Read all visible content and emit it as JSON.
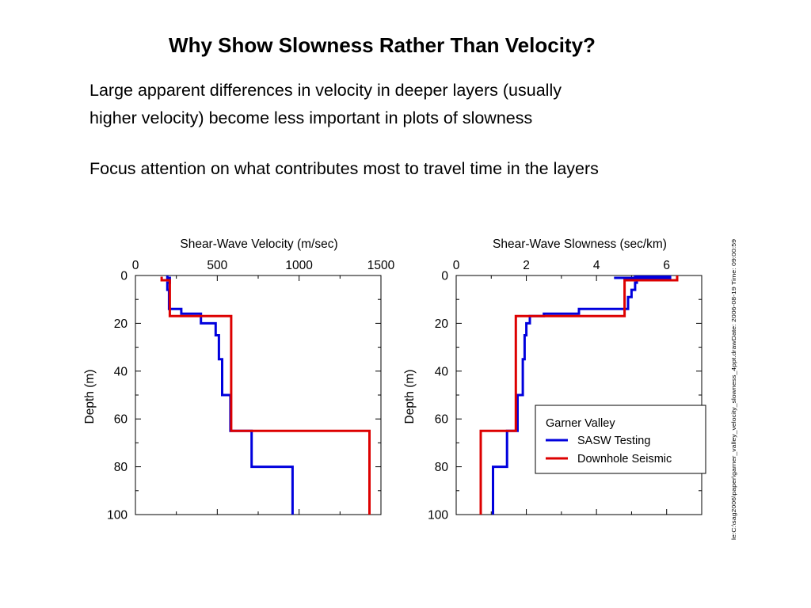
{
  "slide": {
    "title": "Why Show Slowness Rather Than Velocity?",
    "bullets": [
      [
        "Large apparent differences in velocity in deeper layers (usually",
        "higher velocity) become less important in plots of slowness"
      ],
      [
        "Focus attention on what contributes most to travel time in the layers"
      ]
    ],
    "side_note": "le:C:\\sag2006\\paper\\garner_valley_velocity_slowness_4ppt.drawDate: 2006-08-19 Time: 09:00:59"
  },
  "colors": {
    "sasw": "#0000dd",
    "downhole": "#dd0000",
    "axis": "#000000"
  },
  "chart_data": [
    {
      "type": "line",
      "title": "Shear-Wave   Velocity   (m/sec)",
      "xlabel": "Shear-Wave   Velocity   (m/sec)",
      "ylabel": "Depth (m)",
      "xlim": [
        0,
        1500
      ],
      "ylim": [
        0,
        100
      ],
      "y_inverted": true,
      "x_axis_position": "top",
      "xticks": [
        0,
        500,
        1000,
        1500
      ],
      "xtick_labels": [
        "0",
        "500",
        "1000",
        "1500"
      ],
      "yticks": [
        0,
        20,
        40,
        60,
        80,
        100
      ],
      "ytick_labels": [
        "0",
        "20",
        "40",
        "60",
        "80",
        "100"
      ],
      "grid": false,
      "series": [
        {
          "name": "SASW  Testing",
          "color": "#0000dd",
          "points": [
            [
              195,
              0
            ],
            [
              195,
              1
            ],
            [
              210,
              1
            ],
            [
              210,
              3
            ],
            [
              195,
              3
            ],
            [
              195,
              6
            ],
            [
              205,
              6
            ],
            [
              205,
              14
            ],
            [
              280,
              14
            ],
            [
              280,
              16
            ],
            [
              400,
              16
            ],
            [
              400,
              20
            ],
            [
              490,
              20
            ],
            [
              490,
              25
            ],
            [
              510,
              25
            ],
            [
              510,
              35
            ],
            [
              530,
              35
            ],
            [
              530,
              50
            ],
            [
              580,
              50
            ],
            [
              580,
              65
            ],
            [
              710,
              65
            ],
            [
              710,
              80
            ],
            [
              960,
              80
            ],
            [
              960,
              100
            ]
          ]
        },
        {
          "name": "Downhole   Seismic",
          "color": "#dd0000",
          "points": [
            [
              160,
              2
            ],
            [
              160,
              0.5
            ],
            [
              160,
              2
            ],
            [
              210,
              2
            ],
            [
              210,
              3
            ],
            [
              210,
              17
            ],
            [
              585,
              17
            ],
            [
              585,
              65
            ],
            [
              1430,
              65
            ],
            [
              1430,
              100
            ]
          ]
        }
      ]
    },
    {
      "type": "line",
      "title": "Shear-Wave   Slowness   (sec/km)",
      "xlabel": "Shear-Wave   Slowness   (sec/km)",
      "ylabel": "Depth (m)",
      "xlim": [
        0,
        7
      ],
      "ylim": [
        0,
        100
      ],
      "y_inverted": true,
      "x_axis_position": "top",
      "xticks": [
        0,
        2,
        4,
        6
      ],
      "xtick_labels": [
        "0",
        "2",
        "4",
        "6"
      ],
      "yticks": [
        0,
        20,
        40,
        60,
        80,
        100
      ],
      "ytick_labels": [
        "0",
        "20",
        "40",
        "60",
        "80",
        "100"
      ],
      "grid": false,
      "legend": {
        "title": "Garner   Valley",
        "position": "lower-right"
      },
      "series": [
        {
          "name": "SASW  Testing",
          "color": "#0000dd",
          "points": [
            [
              4.5,
              1
            ],
            [
              6.1,
              1
            ],
            [
              6.1,
              0.5
            ],
            [
              5.1,
              0.5
            ],
            [
              5.1,
              1
            ],
            [
              5.15,
              1
            ],
            [
              5.15,
              3
            ],
            [
              5.1,
              3
            ],
            [
              5.1,
              6
            ],
            [
              5.0,
              6
            ],
            [
              5.0,
              9
            ],
            [
              4.9,
              9
            ],
            [
              4.9,
              14
            ],
            [
              3.5,
              14
            ],
            [
              3.5,
              16
            ],
            [
              2.5,
              16
            ],
            [
              2.5,
              17
            ],
            [
              2.1,
              17
            ],
            [
              2.1,
              20
            ],
            [
              2.0,
              20
            ],
            [
              2.0,
              25
            ],
            [
              1.95,
              25
            ],
            [
              1.95,
              35
            ],
            [
              1.9,
              35
            ],
            [
              1.9,
              50
            ],
            [
              1.75,
              50
            ],
            [
              1.75,
              65
            ],
            [
              1.45,
              65
            ],
            [
              1.45,
              80
            ],
            [
              1.05,
              80
            ],
            [
              1.05,
              100
            ]
          ]
        },
        {
          "name": "Downhole   Seismic",
          "color": "#dd0000",
          "points": [
            [
              6.3,
              0
            ],
            [
              6.3,
              2
            ],
            [
              4.8,
              2
            ],
            [
              4.8,
              17
            ],
            [
              1.7,
              17
            ],
            [
              1.7,
              65
            ],
            [
              0.7,
              65
            ],
            [
              0.7,
              100
            ]
          ]
        }
      ]
    }
  ]
}
